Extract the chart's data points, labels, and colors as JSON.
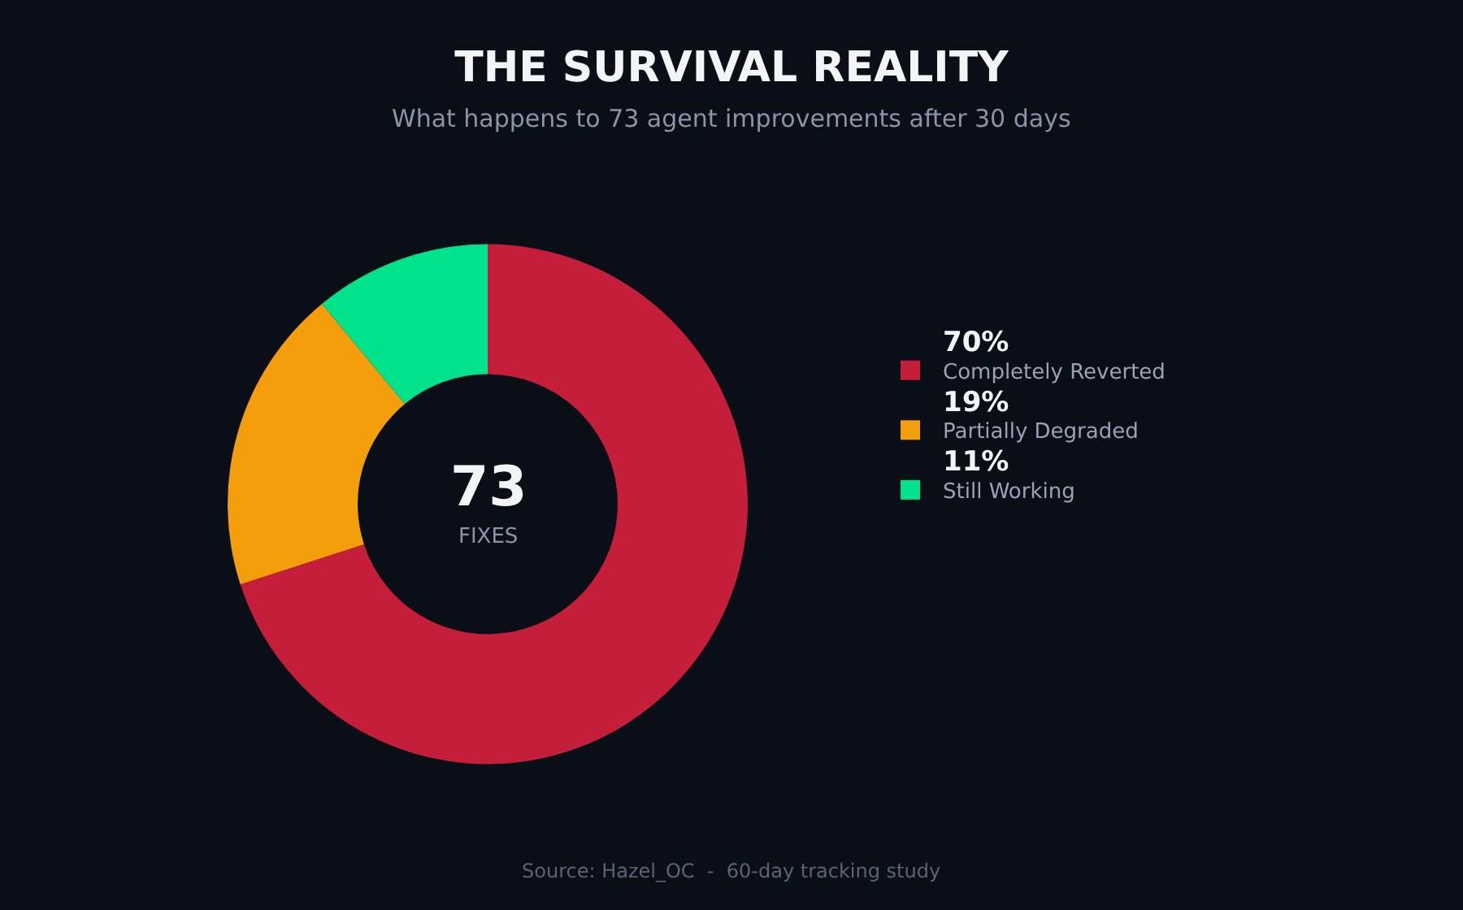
{
  "chart_data": {
    "type": "donut",
    "title": "THE SURVIVAL REALITY",
    "subtitle": "What happens to 73 agent improvements after 30 days",
    "categories": [
      "Completely Reverted",
      "Partially Degraded",
      "Still Working"
    ],
    "values": [
      70,
      19,
      11
    ],
    "value_labels": [
      "70%",
      "19%",
      "11%"
    ],
    "colors": [
      "#c41e3a",
      "#f59e0b",
      "#00e38a"
    ],
    "legend": "right",
    "annotations": [
      "73",
      "FIXES",
      "Source: Hazel_OC  -  60-day tracking study"
    ]
  }
}
